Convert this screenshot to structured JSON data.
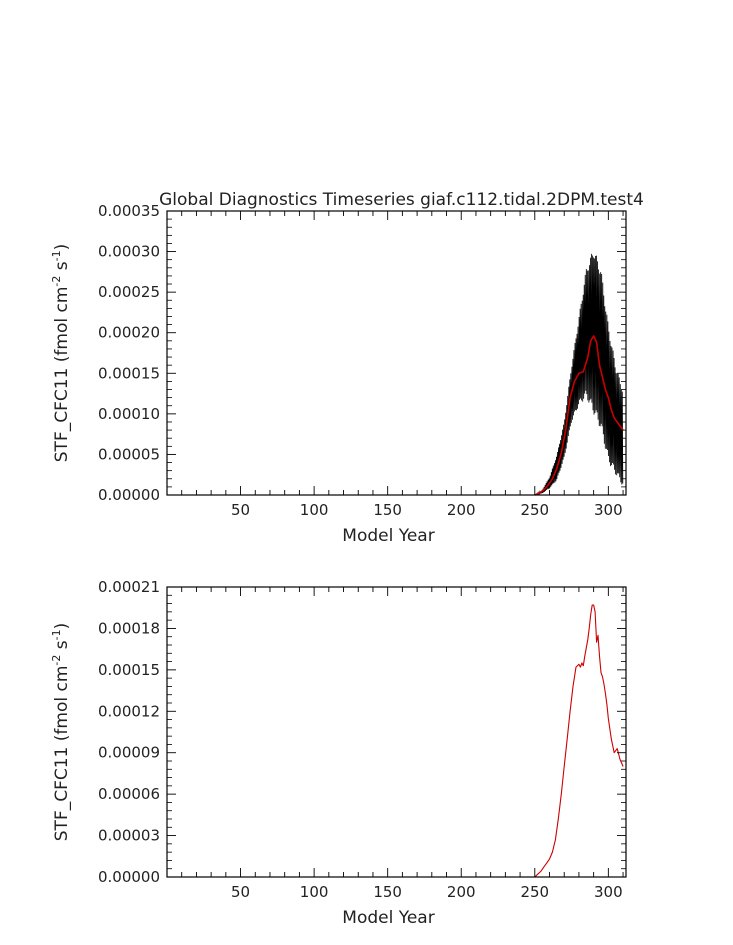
{
  "chart_data": [
    {
      "type": "line",
      "title": "Global Diagnostics Timeseries giaf.c112.tidal.2DPM.test4",
      "xlabel": "Model Year",
      "ylabel_main": "STF_CFC11 (fmol cm",
      "ylabel_exp1": "-2",
      "ylabel_mid": " s",
      "ylabel_exp2": "-1",
      "ylabel_end": ")",
      "xlim": [
        0,
        312
      ],
      "ylim": [
        0,
        0.00035
      ],
      "x_ticks": [
        50,
        100,
        150,
        200,
        250,
        300
      ],
      "x_tick_labels": [
        "50",
        "100",
        "150",
        "200",
        "250",
        "300"
      ],
      "y_ticks": [
        0,
        5e-05,
        0.0001,
        0.00015,
        0.0002,
        0.00025,
        0.0003,
        0.00035
      ],
      "y_tick_labels": [
        "0.00000",
        "0.00005",
        "0.00010",
        "0.00015",
        "0.00020",
        "0.00025",
        "0.00030",
        "0.00035"
      ],
      "series": [
        {
          "style": "monthly-envelope",
          "color": "#000000",
          "x": [
            250,
            255,
            260,
            265,
            270,
            275,
            280,
            285,
            290,
            295,
            300,
            305,
            310
          ],
          "y_low": [
            0.0,
            2e-06,
            8e-06,
            1.8e-05,
            4.5e-05,
            9e-05,
            0.00011,
            0.00012,
            0.0001,
            8e-05,
            4e-05,
            2.5e-05,
            1e-05
          ],
          "y_high": [
            0.0,
            6e-06,
            2.2e-05,
            5e-05,
            9e-05,
            0.00016,
            0.00022,
            0.00028,
            0.000305,
            0.00028,
            0.00021,
            0.00016,
            0.00013
          ]
        },
        {
          "style": "annual-mean",
          "color": "#cc0000",
          "x": [
            250,
            253,
            256,
            259,
            262,
            265,
            268,
            271,
            274,
            277,
            280,
            283,
            286,
            288,
            290,
            292,
            294,
            296,
            298,
            300,
            302,
            304,
            306,
            308,
            310
          ],
          "y": [
            0.0,
            2e-06,
            6e-06,
            1.2e-05,
            2e-05,
            3.3e-05,
            5.2e-05,
            8e-05,
            0.00012,
            0.00014,
            0.00015,
            0.000152,
            0.00017,
            0.00019,
            0.000196,
            0.000188,
            0.00016,
            0.000145,
            0.00013,
            0.00012,
            0.000105,
            9.5e-05,
            9e-05,
            8.5e-05,
            8e-05
          ]
        }
      ]
    },
    {
      "type": "line",
      "title": "",
      "xlabel": "Model Year",
      "ylabel_main": "STF_CFC11 (fmol cm",
      "ylabel_exp1": "-2",
      "ylabel_mid": " s",
      "ylabel_exp2": "-1",
      "ylabel_end": ")",
      "xlim": [
        0,
        312
      ],
      "ylim": [
        0,
        0.00021
      ],
      "x_ticks": [
        50,
        100,
        150,
        200,
        250,
        300
      ],
      "x_tick_labels": [
        "50",
        "100",
        "150",
        "200",
        "250",
        "300"
      ],
      "y_ticks": [
        0,
        3e-05,
        6e-05,
        9e-05,
        0.00012,
        0.00015,
        0.00018,
        0.00021
      ],
      "y_tick_labels": [
        "0.00000",
        "0.00003",
        "0.00006",
        "0.00009",
        "0.00012",
        "0.00015",
        "0.00018",
        "0.00021"
      ],
      "series": [
        {
          "style": "annual-mean",
          "color": "#cc0000",
          "x": [
            0,
            249,
            250,
            252,
            254,
            256,
            258,
            260,
            262,
            264,
            266,
            268,
            270,
            272,
            274,
            276,
            278,
            280,
            281,
            282,
            283,
            284,
            286,
            287,
            288,
            289,
            290,
            291,
            292,
            293,
            294,
            295,
            296,
            297,
            298,
            299,
            300,
            302,
            304,
            306,
            308,
            310
          ],
          "y": [
            0.0,
            0.0,
            0.0,
            2e-06,
            4e-06,
            7e-06,
            1e-05,
            1.3e-05,
            1.8e-05,
            2.7e-05,
            4.2e-05,
            6e-05,
            8e-05,
            0.0001,
            0.00012,
            0.000138,
            0.000152,
            0.000154,
            0.000152,
            0.000155,
            0.000153,
            0.00016,
            0.000172,
            0.00018,
            0.00019,
            0.000197,
            0.000197,
            0.000192,
            0.00017,
            0.000175,
            0.00016,
            0.000148,
            0.000145,
            0.00014,
            0.000133,
            0.000125,
            0.000115,
            0.0001,
            9e-05,
            9.3e-05,
            8.5e-05,
            8e-05
          ]
        }
      ]
    }
  ]
}
